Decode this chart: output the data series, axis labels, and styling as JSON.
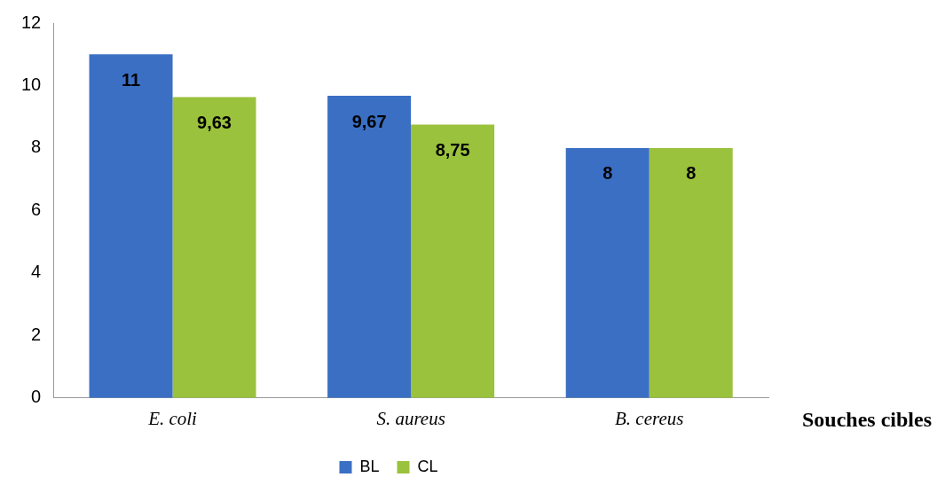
{
  "chart_data": {
    "type": "bar",
    "xlabel": "Souches cibles",
    "categories": [
      "E. coli",
      "S. aureus",
      "B. cereus"
    ],
    "series": [
      {
        "name": "BL",
        "color": "#3a6fc4",
        "values": [
          11,
          9.67,
          8
        ],
        "value_labels": [
          "11",
          "9,67",
          "8"
        ]
      },
      {
        "name": "CL",
        "color": "#9bc23c",
        "values": [
          9.63,
          8.75,
          8
        ],
        "value_labels": [
          "9,63",
          "8,75",
          "8"
        ]
      }
    ],
    "ylim": [
      0,
      12
    ],
    "yticks": [
      0,
      2,
      4,
      6,
      8,
      10,
      12
    ],
    "grid": false,
    "legend": "bottom"
  }
}
